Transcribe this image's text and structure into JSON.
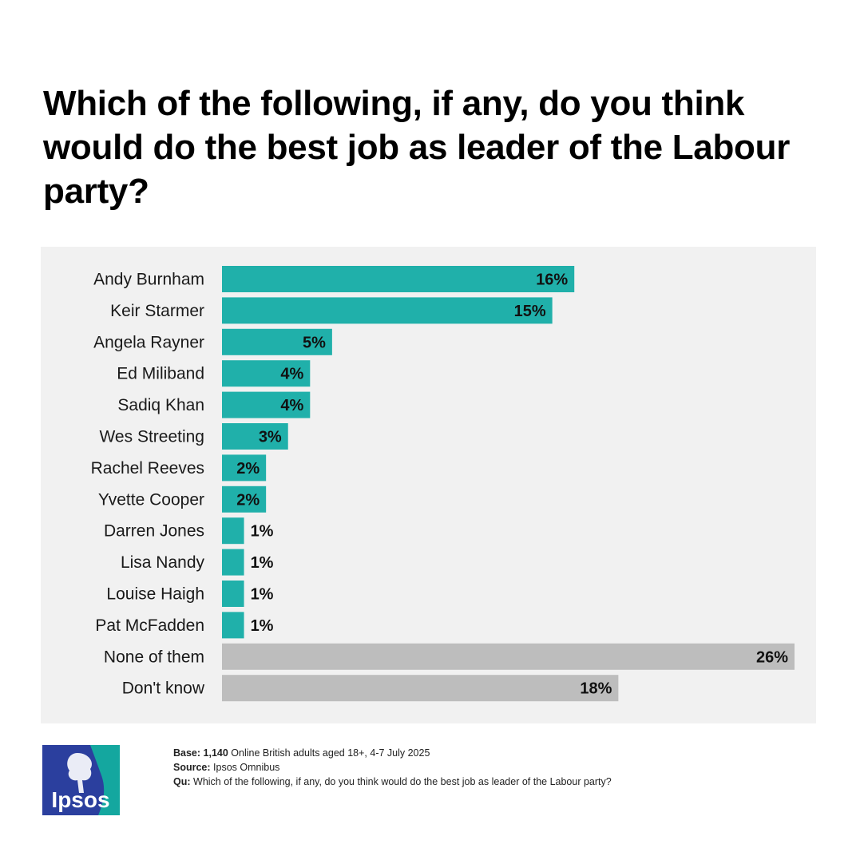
{
  "chart_data": {
    "type": "bar",
    "orientation": "horizontal",
    "title": "Which of the following, if any, do you think would do the best job as leader of the Labour party?",
    "xlim": [
      0,
      26
    ],
    "grid": false,
    "unit": "%",
    "categories": [
      "Andy Burnham",
      "Keir Starmer",
      "Angela Rayner",
      "Ed Miliband",
      "Sadiq Khan",
      "Wes Streeting",
      "Rachel Reeves",
      "Yvette Cooper",
      "Darren Jones",
      "Lisa Nandy",
      "Louise Haigh",
      "Pat McFadden",
      "None of them",
      "Don't know"
    ],
    "values": [
      16,
      15,
      5,
      4,
      4,
      3,
      2,
      2,
      1,
      1,
      1,
      1,
      26,
      18
    ],
    "value_labels": [
      "16%",
      "15%",
      "5%",
      "4%",
      "4%",
      "3%",
      "2%",
      "2%",
      "1%",
      "1%",
      "1%",
      "1%",
      "26%",
      "18%"
    ],
    "colors": {
      "candidate": "#20b0aa",
      "other": "#bdbdbd"
    },
    "bar_groups": [
      "candidate",
      "candidate",
      "candidate",
      "candidate",
      "candidate",
      "candidate",
      "candidate",
      "candidate",
      "candidate",
      "candidate",
      "candidate",
      "candidate",
      "other",
      "other"
    ]
  },
  "footer": {
    "base_label": "Base:",
    "base_value": "1,140",
    "base_text": "Online British adults aged 18+,  4-7 July 2025",
    "source_label": "Source:",
    "source_text": "Ipsos Omnibus",
    "qu_label": "Qu:",
    "qu_text": "Which of the following, if any, do you think would do the best job as leader of the Labour party?"
  },
  "logo": {
    "text": "Ipsos",
    "colors": {
      "blue": "#2b3f9e",
      "teal": "#14a79f"
    }
  }
}
